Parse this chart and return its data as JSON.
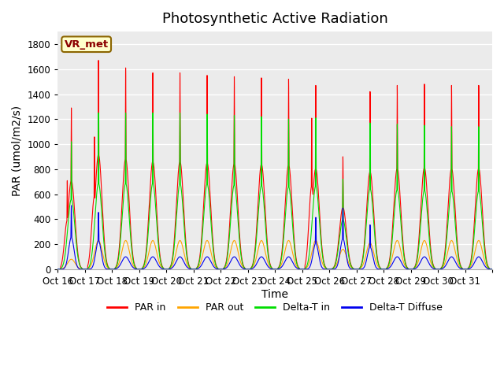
{
  "title": "Photosynthetic Active Radiation",
  "ylabel": "PAR (umol/m2/s)",
  "xlabel": "Time",
  "annotation": "VR_met",
  "ylim": [
    0,
    1900
  ],
  "yticks": [
    0,
    200,
    400,
    600,
    800,
    1000,
    1200,
    1400,
    1600,
    1800
  ],
  "xtick_labels": [
    "Oct 16",
    "Oct 17",
    "Oct 18",
    "Oct 19",
    "Oct 20",
    "Oct 21",
    "Oct 22",
    "Oct 23",
    "Oct 24",
    "Oct 25",
    "Oct 26",
    "Oct 27",
    "Oct 28",
    "Oct 29",
    "Oct 30",
    "Oct 31"
  ],
  "colors": {
    "par_in": "#FF0000",
    "par_out": "#FFA500",
    "delta_t_in": "#00DD00",
    "delta_t_diffuse": "#0000EE"
  },
  "legend_labels": [
    "PAR in",
    "PAR out",
    "Delta-T in",
    "Delta-T Diffuse"
  ],
  "background_plot": "#EBEBEB",
  "background_fig": "#FFFFFF",
  "grid_color": "#FFFFFF",
  "n_days": 16,
  "points_per_day": 288,
  "par_in_peaks": [
    1290,
    1670,
    1610,
    1570,
    1570,
    1550,
    1540,
    1530,
    1520,
    1470,
    900,
    1420,
    1470,
    1480,
    1470,
    1470
  ],
  "par_in_secondary": [
    710,
    1060,
    0,
    0,
    0,
    0,
    0,
    0,
    0,
    1210,
    0,
    0,
    0,
    0,
    0,
    0
  ],
  "par_out_peaks": [
    80,
    230,
    230,
    230,
    230,
    230,
    230,
    230,
    230,
    230,
    160,
    210,
    230,
    230,
    230,
    230
  ],
  "delta_t_in_peaks": [
    1020,
    1250,
    1250,
    1250,
    1250,
    1240,
    1230,
    1220,
    1200,
    1210,
    720,
    1170,
    1160,
    1150,
    1140,
    1140
  ],
  "delta_t_diffuse_peaks": [
    510,
    455,
    100,
    100,
    100,
    100,
    100,
    100,
    100,
    415,
    490,
    355,
    100,
    100,
    100,
    100
  ],
  "delta_t_diffuse_large": [
    1,
    1,
    0,
    0,
    0,
    0,
    0,
    0,
    0,
    1,
    1,
    1,
    0,
    0,
    0,
    0
  ],
  "title_fontsize": 13,
  "label_fontsize": 10,
  "tick_fontsize": 8.5
}
